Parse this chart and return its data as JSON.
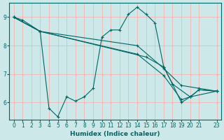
{
  "xlabel": "Humidex (Indice chaleur)",
  "ylabel": "",
  "bg_color": "#cce8e8",
  "line_color": "#006666",
  "grid_color": "#ffaaaa",
  "xlim": [
    -0.5,
    23.5
  ],
  "ylim": [
    5.4,
    9.5
  ],
  "yticks": [
    6,
    7,
    8,
    9
  ],
  "xticks": [
    0,
    1,
    2,
    3,
    4,
    5,
    6,
    7,
    8,
    9,
    10,
    11,
    12,
    13,
    14,
    15,
    16,
    17,
    18,
    19,
    20,
    21,
    23
  ],
  "series": [
    {
      "x": [
        0,
        1,
        3,
        4,
        5,
        6,
        7,
        8,
        9,
        10,
        11,
        12,
        13,
        14,
        15,
        16,
        17,
        18,
        19,
        20,
        21,
        23
      ],
      "y": [
        9.0,
        8.9,
        8.5,
        5.8,
        5.5,
        6.2,
        6.05,
        6.2,
        6.5,
        8.3,
        8.55,
        8.55,
        9.1,
        9.35,
        9.1,
        8.8,
        7.25,
        6.65,
        6.0,
        6.2,
        6.45,
        6.4
      ]
    },
    {
      "x": [
        0,
        3,
        15,
        17,
        18,
        20,
        21,
        23
      ],
      "y": [
        9.0,
        8.5,
        7.6,
        7.25,
        6.65,
        6.2,
        6.45,
        6.4
      ]
    },
    {
      "x": [
        0,
        3,
        14,
        17,
        19,
        21,
        23
      ],
      "y": [
        9.0,
        8.5,
        8.0,
        7.2,
        6.6,
        6.5,
        6.4
      ]
    },
    {
      "x": [
        0,
        3,
        14,
        17,
        19,
        20,
        23
      ],
      "y": [
        9.0,
        8.5,
        7.7,
        6.95,
        6.1,
        6.2,
        6.4
      ]
    }
  ]
}
